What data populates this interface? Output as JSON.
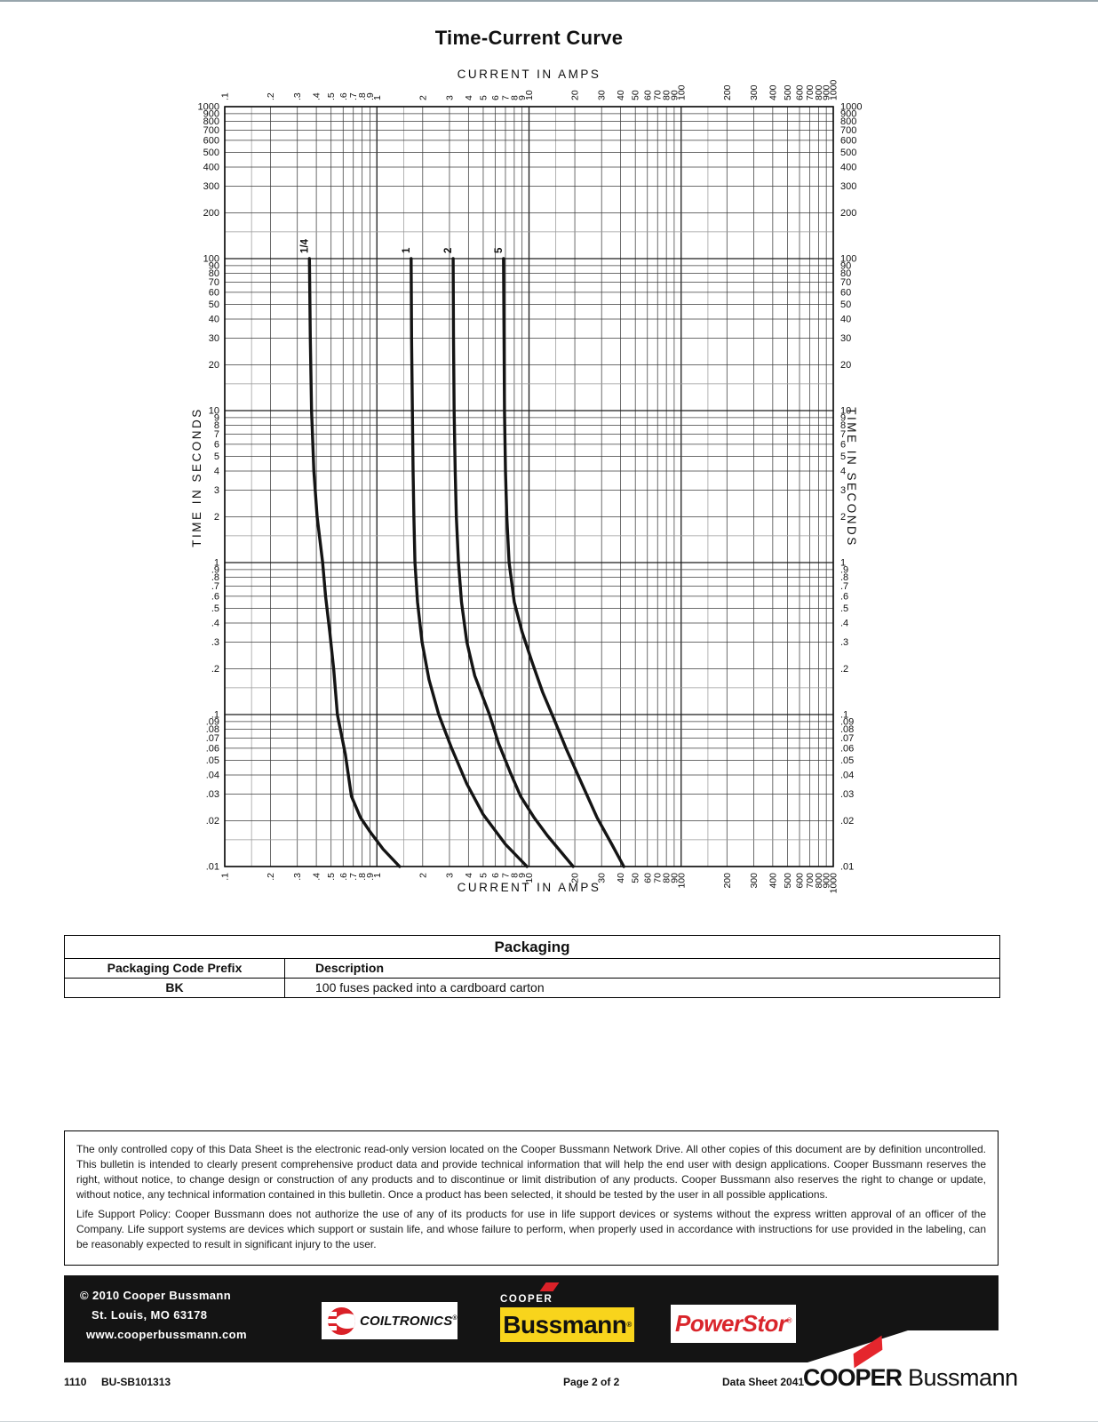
{
  "header": {
    "title": "Time-Current Curve"
  },
  "chart_data": {
    "type": "line",
    "title": "Time-Current Curve",
    "xlabel": "CURRENT IN AMPS",
    "ylabel": "TIME IN SECONDS",
    "x_scale": "log",
    "y_scale": "log",
    "xlim": [
      0.1,
      1000
    ],
    "ylim": [
      0.01,
      1000
    ],
    "grid": true,
    "x_ticks": [
      0.1,
      0.2,
      0.3,
      0.4,
      0.5,
      0.6,
      0.7,
      0.8,
      0.9,
      1,
      2,
      3,
      4,
      5,
      6,
      7,
      8,
      9,
      10,
      20,
      30,
      40,
      50,
      60,
      70,
      80,
      90,
      100,
      200,
      300,
      400,
      500,
      600,
      700,
      800,
      900,
      1000
    ],
    "y_ticks": [
      1000,
      900,
      800,
      700,
      600,
      500,
      400,
      300,
      200,
      100,
      90,
      80,
      70,
      60,
      50,
      40,
      30,
      20,
      10,
      9,
      8,
      7,
      6,
      5,
      4,
      3,
      2,
      1,
      0.9,
      0.8,
      0.7,
      0.6,
      0.5,
      0.4,
      0.3,
      0.2,
      0.1,
      0.09,
      0.08,
      0.07,
      0.06,
      0.05,
      0.04,
      0.03,
      0.02,
      0.01
    ],
    "series": [
      {
        "name": "1/4",
        "points": [
          [
            0.36,
            100
          ],
          [
            0.365,
            30
          ],
          [
            0.372,
            10
          ],
          [
            0.385,
            4
          ],
          [
            0.405,
            2
          ],
          [
            0.44,
            1
          ],
          [
            0.46,
            0.6
          ],
          [
            0.49,
            0.35
          ],
          [
            0.52,
            0.2
          ],
          [
            0.55,
            0.1
          ],
          [
            0.62,
            0.055
          ],
          [
            0.68,
            0.029
          ],
          [
            0.78,
            0.021
          ],
          [
            0.9,
            0.017
          ],
          [
            1.1,
            0.013
          ],
          [
            1.41,
            0.01
          ]
        ]
      },
      {
        "name": "1",
        "points": [
          [
            1.68,
            100
          ],
          [
            1.69,
            30
          ],
          [
            1.71,
            10
          ],
          [
            1.73,
            4
          ],
          [
            1.75,
            2
          ],
          [
            1.78,
            1
          ],
          [
            1.85,
            0.55
          ],
          [
            1.98,
            0.3
          ],
          [
            2.2,
            0.17
          ],
          [
            2.55,
            0.1
          ],
          [
            3.1,
            0.06
          ],
          [
            3.9,
            0.035
          ],
          [
            5.0,
            0.022
          ],
          [
            7.0,
            0.014
          ],
          [
            9.7,
            0.01
          ]
        ]
      },
      {
        "name": "2",
        "points": [
          [
            3.17,
            100
          ],
          [
            3.19,
            30
          ],
          [
            3.22,
            10
          ],
          [
            3.27,
            4
          ],
          [
            3.33,
            2
          ],
          [
            3.44,
            1
          ],
          [
            3.6,
            0.55
          ],
          [
            3.9,
            0.3
          ],
          [
            4.4,
            0.18
          ],
          [
            5.5,
            0.1
          ],
          [
            6.3,
            0.065
          ],
          [
            7.5,
            0.042
          ],
          [
            8.8,
            0.029
          ],
          [
            10.8,
            0.021
          ],
          [
            13.2,
            0.016
          ],
          [
            19.5,
            0.01
          ]
        ]
      },
      {
        "name": "5",
        "points": [
          [
            6.8,
            100
          ],
          [
            6.85,
            30
          ],
          [
            6.9,
            10
          ],
          [
            7.0,
            4
          ],
          [
            7.15,
            2
          ],
          [
            7.4,
            1
          ],
          [
            8.0,
            0.55
          ],
          [
            9.0,
            0.35
          ],
          [
            10.5,
            0.22
          ],
          [
            12.3,
            0.14
          ],
          [
            14.5,
            0.095
          ],
          [
            17.5,
            0.06
          ],
          [
            22.0,
            0.036
          ],
          [
            28.0,
            0.021
          ],
          [
            35.0,
            0.014
          ],
          [
            42.0,
            0.01
          ]
        ]
      }
    ]
  },
  "packaging": {
    "title": "Packaging",
    "columns": [
      "Packaging Code Prefix",
      "Description"
    ],
    "rows": [
      {
        "prefix": "BK",
        "description": "100 fuses packed into a cardboard carton"
      }
    ]
  },
  "legal": {
    "p1": "The only controlled copy of this Data Sheet is the electronic read-only version located on the Cooper Bussmann Network Drive. All other copies of this document are by definition uncontrolled. This bulletin is intended to clearly present comprehensive product data and provide technical information that will help the end user with design applications. Cooper Bussmann reserves the right, without notice, to change design or construction of any products and to discontinue or limit distribution of any products. Cooper Bussmann also reserves the right to change or update, without notice, any technical information contained in this bulletin. Once a product has been selected, it should be tested by the user in all possible applications.",
    "p2": "Life Support Policy: Cooper Bussmann does not authorize the use of any of its products for use in life support devices or systems without the express written approval of an officer of the Company. Life support systems are devices which support or sustain life, and whose failure to perform, when properly used in accordance with instructions for use provided in the labeling, can be reasonably expected to result in significant injury to the user."
  },
  "brand_bar": {
    "copyright": "© 2010 Cooper Bussmann",
    "address": "St. Louis, MO 63178",
    "website": "www.cooperbussmann.com",
    "coiltronics_label": "COILTRONICS",
    "bussmann_top_label": "COOPER",
    "bussmann_label": "Bussmann",
    "powerstor_label": "PowerStor",
    "reg_mark": "®"
  },
  "footer": {
    "code1": "1110",
    "code2": "BU-SB101313",
    "page": "Page 2 of 2",
    "datasheet": "Data Sheet 2041",
    "logo_bold": "COOPER",
    "logo_regular": "Bussmann"
  },
  "colors": {
    "bussmann_yellow": "#f8d41c",
    "logo_red": "#da2128",
    "powerstor_red": "#d9252b",
    "cooper_red": "#e5262d",
    "bar_black": "#141414"
  }
}
